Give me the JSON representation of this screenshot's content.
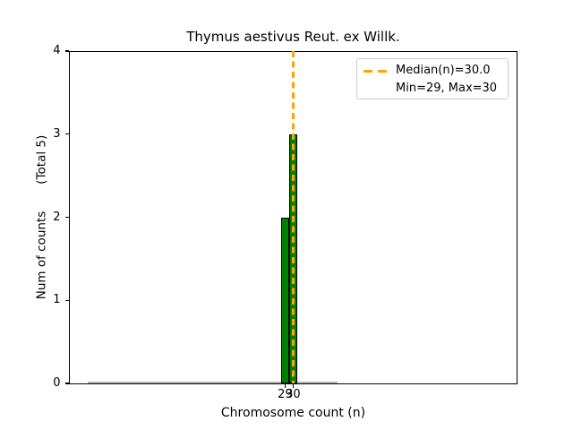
{
  "chart_data": {
    "type": "bar",
    "title": "Thymus aestivus Reut. ex Willk.",
    "xlabel": "Chromosome count (n)",
    "ylabel": "Num of counts       (Total 5)",
    "categories": [
      29,
      30
    ],
    "values": [
      2,
      3
    ],
    "bar_width": 1,
    "bar_color": "#008000",
    "bar_edge_color": "#000000",
    "empty_bins_edge_range": [
      4.5,
      35.5
    ],
    "empty_bins_edge_color": "#b3b3b3",
    "median_line": {
      "x": 30.0,
      "color": "#FFA500",
      "style": "dashed"
    },
    "xticks": [
      "29",
      "30"
    ],
    "xtick_values": [
      29,
      30
    ],
    "yticks": [
      "0",
      "1",
      "2",
      "3",
      "4"
    ],
    "ytick_values": [
      0,
      1,
      2,
      3,
      4
    ],
    "xlim": [
      2.2,
      57.7
    ],
    "ylim": [
      0,
      4
    ],
    "grid": false,
    "legend": {
      "position": "upper right",
      "entries": [
        {
          "label": "Median(n)=30.0",
          "handle": "orange-dashed-line"
        },
        {
          "label": "Min=29, Max=30",
          "handle": "none"
        }
      ]
    },
    "stats": {
      "median_n": "30.0",
      "min_n": "29",
      "max_n": "30",
      "total_counts": "5"
    }
  }
}
